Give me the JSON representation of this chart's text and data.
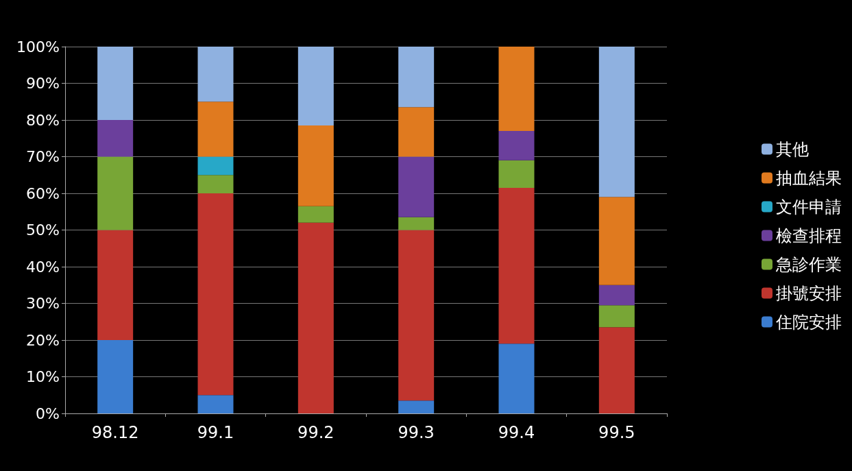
{
  "chart_data": {
    "type": "bar",
    "stacked": true,
    "categories": [
      "98.12",
      "99.1",
      "99.2",
      "99.3",
      "99.4",
      "99.5"
    ],
    "series": [
      {
        "name": "住院安排",
        "color": "#3b7dd0",
        "values": [
          20,
          5,
          0,
          3.5,
          19,
          0
        ]
      },
      {
        "name": "掛號安排",
        "color": "#c0352e",
        "values": [
          30,
          55,
          52,
          46.5,
          42.5,
          23.5
        ]
      },
      {
        "name": "急診作業",
        "color": "#78a636",
        "values": [
          20,
          5,
          4.5,
          3.5,
          7.5,
          6
        ]
      },
      {
        "name": "檢查排程",
        "color": "#6b3f9c",
        "values": [
          10,
          0,
          0,
          16.5,
          8,
          5.5
        ]
      },
      {
        "name": "文件申請",
        "color": "#27a8c8",
        "values": [
          0,
          5,
          0,
          0,
          0,
          0
        ]
      },
      {
        "name": "抽血結果",
        "color": "#e07a1f",
        "values": [
          0,
          15,
          22,
          13.5,
          23,
          24
        ]
      },
      {
        "name": "其他",
        "color": "#8fb1e0",
        "values": [
          20,
          15,
          21.5,
          16.5,
          0,
          41
        ]
      }
    ],
    "ylim": [
      0,
      100
    ],
    "yticks": [
      {
        "value": 0,
        "label": "0%"
      },
      {
        "value": 10,
        "label": "10%"
      },
      {
        "value": 20,
        "label": "20%"
      },
      {
        "value": 30,
        "label": "30%"
      },
      {
        "value": 40,
        "label": "40%"
      },
      {
        "value": 50,
        "label": "50%"
      },
      {
        "value": 60,
        "label": "60%"
      },
      {
        "value": 70,
        "label": "70%"
      },
      {
        "value": 80,
        "label": "80%"
      },
      {
        "value": 90,
        "label": "90%"
      },
      {
        "value": 100,
        "label": "100%"
      }
    ],
    "grid": "y",
    "legend": "right"
  }
}
